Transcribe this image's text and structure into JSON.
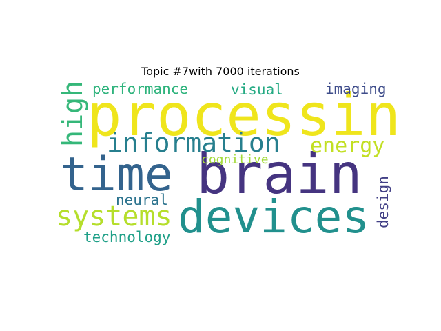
{
  "figure": {
    "title": "Topic #7with 7000 iterations"
  },
  "wordcloud": {
    "words": [
      {
        "text": "processing",
        "color": "#efe51c"
      },
      {
        "text": "brain",
        "color": "#453480"
      },
      {
        "text": "devices",
        "color": "#21908d"
      },
      {
        "text": "time",
        "color": "#33638d"
      },
      {
        "text": "information",
        "color": "#277f8e"
      },
      {
        "text": "systems",
        "color": "#b5de2b"
      },
      {
        "text": "high",
        "color": "#35b779"
      },
      {
        "text": "energy",
        "color": "#c2df23"
      },
      {
        "text": "performance",
        "color": "#2eb37c"
      },
      {
        "text": "visual",
        "color": "#24aa83"
      },
      {
        "text": "imaging",
        "color": "#3e4c8a"
      },
      {
        "text": "cognitive",
        "color": "#a2da37"
      },
      {
        "text": "neural",
        "color": "#2c738e"
      },
      {
        "text": "technology",
        "color": "#1fa088"
      },
      {
        "text": "design",
        "color": "#424086"
      }
    ]
  }
}
